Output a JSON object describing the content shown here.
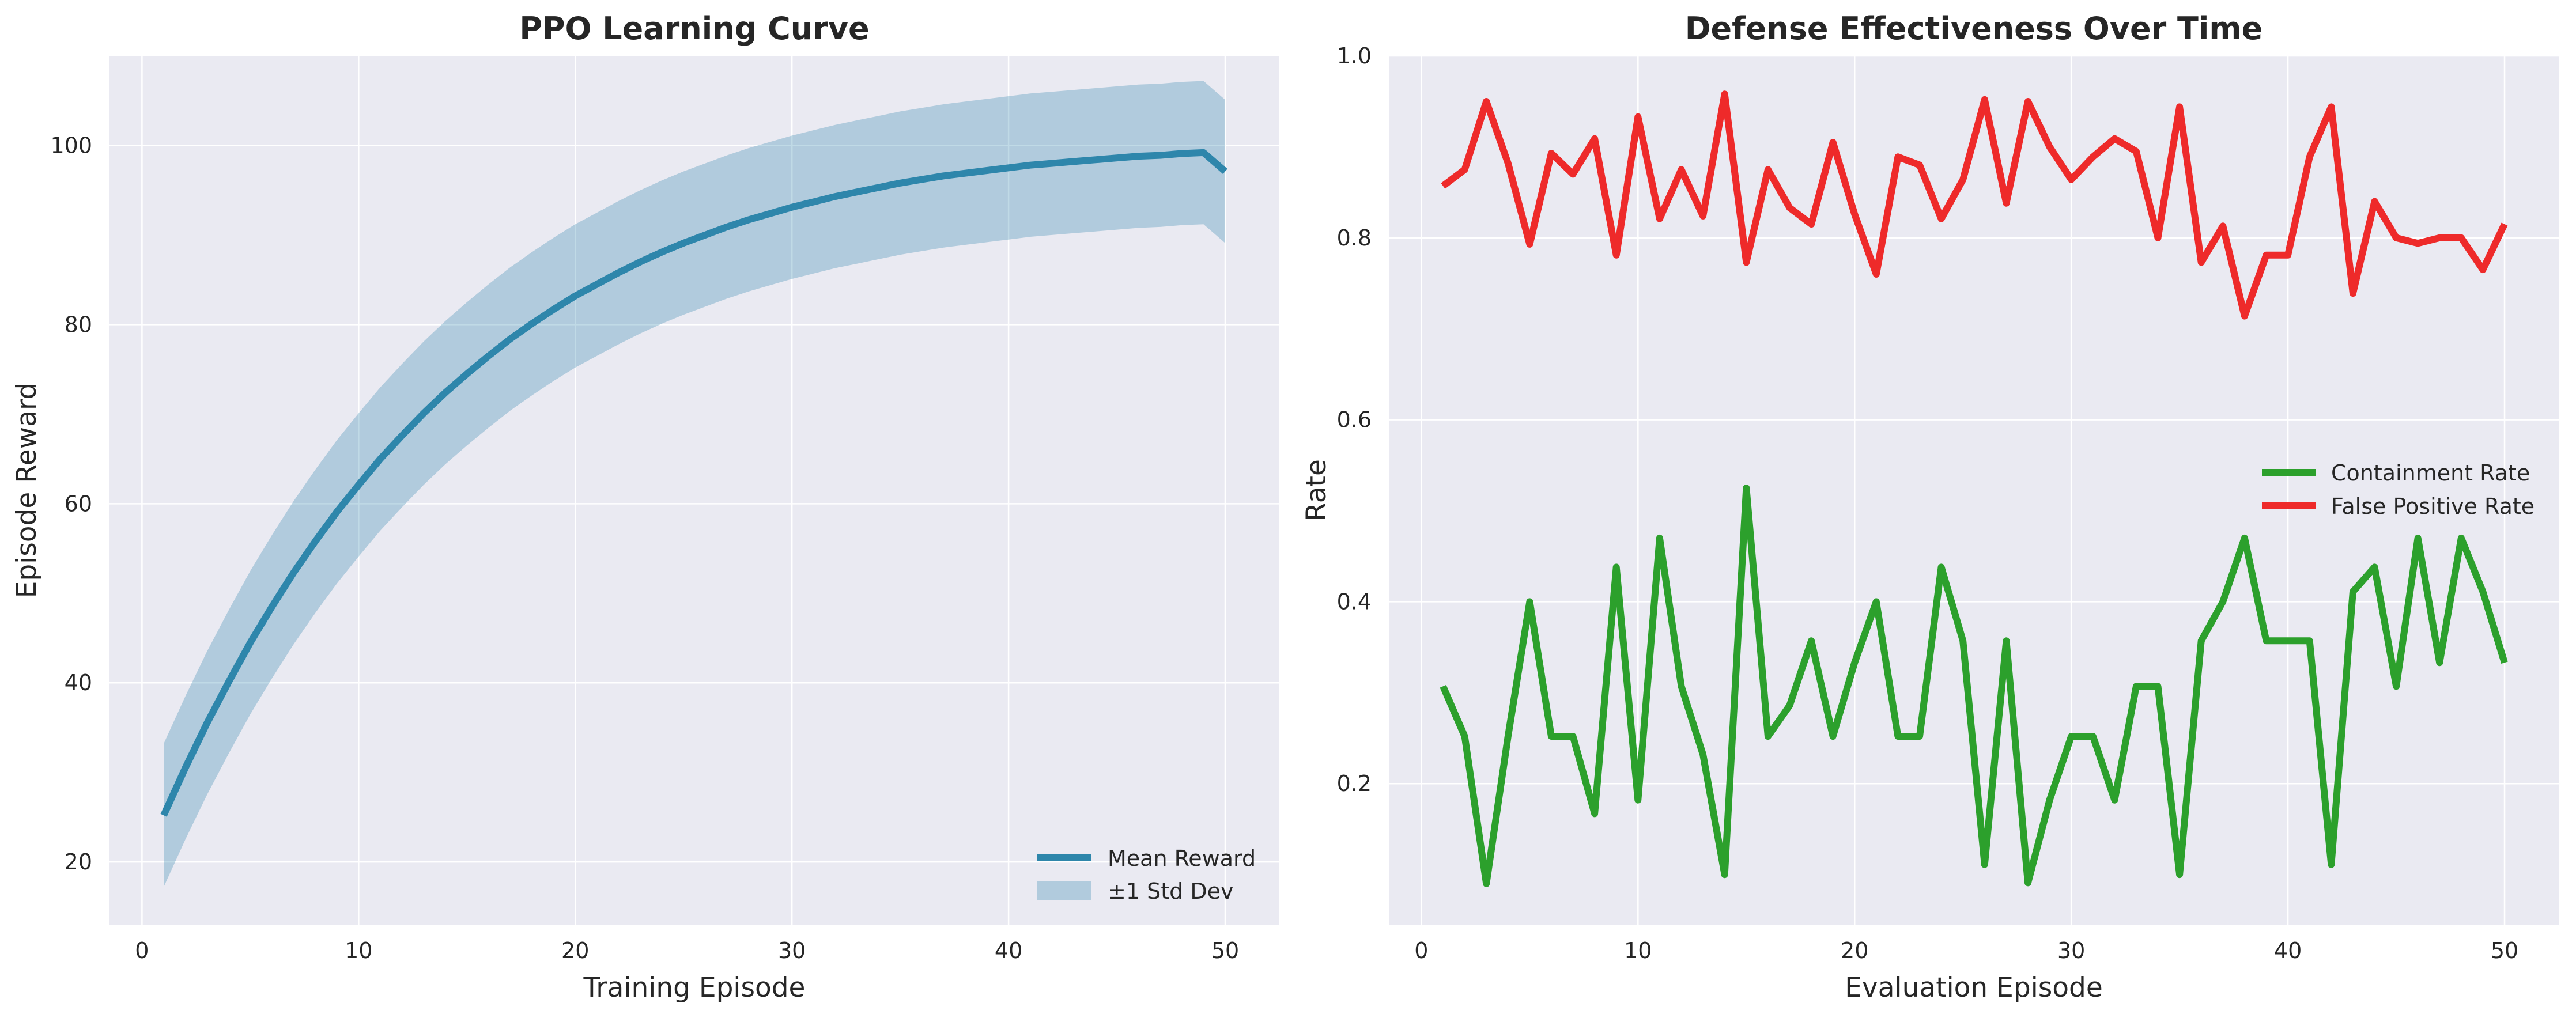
{
  "chart_data": [
    {
      "type": "line",
      "title": "PPO Learning Curve",
      "xlabel": "Training Episode",
      "ylabel": "Episode Reward",
      "xlim": [
        -1.5,
        52.5
      ],
      "ylim": [
        13,
        110
      ],
      "xticks": [
        0,
        10,
        20,
        30,
        40,
        50
      ],
      "yticks": [
        20,
        40,
        60,
        80,
        100
      ],
      "grid": true,
      "legend_position": "lower-right",
      "x": [
        1,
        2,
        3,
        4,
        5,
        6,
        7,
        8,
        9,
        10,
        11,
        12,
        13,
        14,
        15,
        16,
        17,
        18,
        19,
        20,
        21,
        22,
        23,
        24,
        25,
        26,
        27,
        28,
        29,
        30,
        31,
        32,
        33,
        34,
        35,
        36,
        37,
        38,
        39,
        40,
        41,
        42,
        43,
        44,
        45,
        46,
        47,
        48,
        49,
        50
      ],
      "series": [
        {
          "name": "Mean Reward",
          "color": "#2e86ab",
          "values": [
            25.2,
            30.5,
            35.5,
            40.1,
            44.5,
            48.5,
            52.3,
            55.8,
            59.1,
            62.1,
            65.0,
            67.6,
            70.1,
            72.4,
            74.5,
            76.5,
            78.4,
            80.1,
            81.7,
            83.2,
            84.5,
            85.8,
            87.0,
            88.1,
            89.1,
            90.0,
            90.9,
            91.7,
            92.4,
            93.1,
            93.7,
            94.3,
            94.8,
            95.3,
            95.8,
            96.2,
            96.6,
            96.9,
            97.2,
            97.5,
            97.8,
            98.0,
            98.2,
            98.4,
            98.6,
            98.8,
            98.9,
            99.1,
            99.2,
            97.1
          ]
        },
        {
          "name": "±1 Std Dev",
          "type": "band",
          "color": "#2e86ab",
          "lower": [
            17.2,
            22.5,
            27.5,
            32.1,
            36.5,
            40.5,
            44.3,
            47.8,
            51.1,
            54.1,
            57.0,
            59.6,
            62.1,
            64.4,
            66.5,
            68.5,
            70.4,
            72.1,
            73.7,
            75.2,
            76.5,
            77.8,
            79.0,
            80.1,
            81.1,
            82.0,
            82.9,
            83.7,
            84.4,
            85.1,
            85.7,
            86.3,
            86.8,
            87.3,
            87.8,
            88.2,
            88.6,
            88.9,
            89.2,
            89.5,
            89.8,
            90.0,
            90.2,
            90.4,
            90.6,
            90.8,
            90.9,
            91.1,
            91.2,
            89.1
          ],
          "upper": [
            33.2,
            38.5,
            43.5,
            48.1,
            52.5,
            56.5,
            60.3,
            63.8,
            67.1,
            70.1,
            73.0,
            75.6,
            78.1,
            80.4,
            82.5,
            84.5,
            86.4,
            88.1,
            89.7,
            91.2,
            92.5,
            93.8,
            95.0,
            96.1,
            97.1,
            98.0,
            98.9,
            99.7,
            100.4,
            101.1,
            101.7,
            102.3,
            102.8,
            103.3,
            103.8,
            104.2,
            104.6,
            104.9,
            105.2,
            105.5,
            105.8,
            106.0,
            106.2,
            106.4,
            106.6,
            106.8,
            106.9,
            107.1,
            107.2,
            105.1
          ]
        }
      ]
    },
    {
      "type": "line",
      "title": "Defense Effectiveness Over Time",
      "xlabel": "Evaluation Episode",
      "ylabel": "Rate",
      "xlim": [
        -1.5,
        52.5
      ],
      "ylim": [
        0.045,
        1.0
      ],
      "xticks": [
        0,
        10,
        20,
        30,
        40,
        50
      ],
      "yticks": [
        0.2,
        0.4,
        0.6,
        0.8,
        1.0
      ],
      "grid": true,
      "legend_position": "center-right",
      "x": [
        1,
        2,
        3,
        4,
        5,
        6,
        7,
        8,
        9,
        10,
        11,
        12,
        13,
        14,
        15,
        16,
        17,
        18,
        19,
        20,
        21,
        22,
        23,
        24,
        25,
        26,
        27,
        28,
        29,
        30,
        31,
        32,
        33,
        34,
        35,
        36,
        37,
        38,
        39,
        40,
        41,
        42,
        43,
        44,
        45,
        46,
        47,
        48,
        49,
        50
      ],
      "series": [
        {
          "name": "Containment Rate",
          "color": "#2ca02c",
          "values": [
            0.307,
            0.252,
            0.09,
            0.252,
            0.4,
            0.252,
            0.252,
            0.167,
            0.438,
            0.182,
            0.47,
            0.307,
            0.232,
            0.1,
            0.525,
            0.252,
            0.286,
            0.357,
            0.252,
            0.333,
            0.4,
            0.252,
            0.252,
            0.438,
            0.357,
            0.111,
            0.357,
            0.091,
            0.182,
            0.252,
            0.252,
            0.182,
            0.307,
            0.307,
            0.1,
            0.357,
            0.4,
            0.47,
            0.357,
            0.357,
            0.357,
            0.111,
            0.411,
            0.438,
            0.307,
            0.47,
            0.333,
            0.47,
            0.411,
            0.333
          ]
        },
        {
          "name": "False Positive Rate",
          "color": "#ee2a2a",
          "values": [
            0.857,
            0.875,
            0.95,
            0.882,
            0.793,
            0.893,
            0.87,
            0.909,
            0.781,
            0.933,
            0.821,
            0.875,
            0.824,
            0.958,
            0.773,
            0.875,
            0.833,
            0.815,
            0.905,
            0.826,
            0.76,
            0.889,
            0.88,
            0.821,
            0.864,
            0.952,
            0.838,
            0.95,
            0.9,
            0.864,
            0.889,
            0.909,
            0.895,
            0.8,
            0.944,
            0.773,
            0.813,
            0.714,
            0.781,
            0.781,
            0.889,
            0.944,
            0.739,
            0.84,
            0.8,
            0.794,
            0.8,
            0.8,
            0.765,
            0.815
          ]
        }
      ]
    }
  ]
}
